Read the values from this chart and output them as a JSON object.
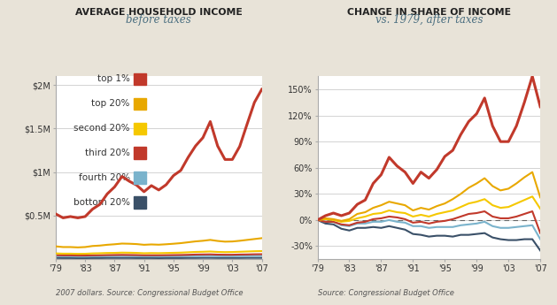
{
  "years": [
    1979,
    1980,
    1981,
    1982,
    1983,
    1984,
    1985,
    1986,
    1987,
    1988,
    1989,
    1990,
    1991,
    1992,
    1993,
    1994,
    1995,
    1996,
    1997,
    1998,
    1999,
    2000,
    2001,
    2002,
    2003,
    2004,
    2005,
    2006,
    2007
  ],
  "left_title1": "AVERAGE HOUSEHOLD INCOME",
  "left_title2": "before taxes",
  "right_title1": "CHANGE IN SHARE OF INCOME",
  "right_title2": "vs. 1979, after taxes",
  "left_source": "2007 dollars. Source: Congressional Budget Office",
  "right_source": "Source: Congressional Budget Office",
  "colors": {
    "top1": "#c1392b",
    "top20": "#e8a800",
    "second20": "#f5c800",
    "third20": "#c1392b",
    "fourth20": "#7ab3cc",
    "bottom20": "#3a5068"
  },
  "left_series": {
    "top1": [
      0.52,
      0.475,
      0.49,
      0.475,
      0.49,
      0.575,
      0.63,
      0.75,
      0.83,
      0.95,
      0.895,
      0.85,
      0.775,
      0.845,
      0.795,
      0.855,
      0.96,
      1.02,
      1.17,
      1.3,
      1.395,
      1.58,
      1.3,
      1.145,
      1.145,
      1.295,
      1.55,
      1.8,
      1.95
    ],
    "top20": [
      0.148,
      0.14,
      0.14,
      0.136,
      0.14,
      0.152,
      0.157,
      0.166,
      0.172,
      0.18,
      0.178,
      0.174,
      0.166,
      0.17,
      0.167,
      0.172,
      0.178,
      0.185,
      0.195,
      0.205,
      0.212,
      0.222,
      0.21,
      0.202,
      0.204,
      0.212,
      0.222,
      0.232,
      0.242
    ],
    "second20": [
      0.067,
      0.064,
      0.064,
      0.062,
      0.063,
      0.067,
      0.069,
      0.072,
      0.073,
      0.076,
      0.075,
      0.073,
      0.069,
      0.071,
      0.07,
      0.072,
      0.074,
      0.076,
      0.08,
      0.084,
      0.086,
      0.089,
      0.084,
      0.082,
      0.083,
      0.086,
      0.089,
      0.092,
      0.094
    ],
    "third20": [
      0.047,
      0.045,
      0.045,
      0.043,
      0.043,
      0.045,
      0.046,
      0.048,
      0.049,
      0.05,
      0.049,
      0.048,
      0.046,
      0.046,
      0.046,
      0.047,
      0.048,
      0.049,
      0.051,
      0.054,
      0.055,
      0.056,
      0.053,
      0.052,
      0.052,
      0.054,
      0.055,
      0.057,
      0.058
    ],
    "fourth20": [
      0.034,
      0.033,
      0.033,
      0.031,
      0.031,
      0.033,
      0.033,
      0.034,
      0.035,
      0.036,
      0.035,
      0.034,
      0.033,
      0.033,
      0.032,
      0.033,
      0.034,
      0.034,
      0.036,
      0.037,
      0.038,
      0.039,
      0.037,
      0.036,
      0.036,
      0.037,
      0.038,
      0.039,
      0.039
    ],
    "bottom20": [
      0.015,
      0.014,
      0.014,
      0.013,
      0.013,
      0.014,
      0.014,
      0.015,
      0.015,
      0.015,
      0.015,
      0.014,
      0.014,
      0.014,
      0.013,
      0.014,
      0.014,
      0.014,
      0.015,
      0.015,
      0.016,
      0.016,
      0.015,
      0.015,
      0.015,
      0.015,
      0.016,
      0.016,
      0.016
    ]
  },
  "right_series": {
    "top1": [
      0,
      5,
      8,
      5,
      8,
      18,
      23,
      42,
      52,
      72,
      62,
      55,
      42,
      55,
      48,
      58,
      73,
      80,
      98,
      113,
      122,
      140,
      108,
      90,
      90,
      108,
      135,
      165,
      130
    ],
    "top20": [
      0,
      2,
      1,
      -1,
      1,
      7,
      9,
      14,
      17,
      21,
      19,
      17,
      11,
      14,
      12,
      16,
      19,
      24,
      30,
      37,
      42,
      48,
      39,
      34,
      36,
      42,
      49,
      55,
      26
    ],
    "second20": [
      0,
      1,
      0,
      -2,
      -1,
      2,
      4,
      7,
      8,
      11,
      9,
      8,
      4,
      6,
      4,
      7,
      9,
      11,
      15,
      19,
      21,
      24,
      17,
      14,
      15,
      19,
      23,
      27,
      13
    ],
    "third20": [
      0,
      -2,
      -2,
      -5,
      -6,
      -3,
      -2,
      1,
      2,
      4,
      3,
      1,
      -3,
      -2,
      -4,
      -2,
      -1,
      1,
      4,
      7,
      8,
      10,
      4,
      2,
      2,
      4,
      7,
      10,
      -15
    ],
    "fourth20": [
      0,
      -2,
      -2,
      -6,
      -7,
      -4,
      -4,
      -2,
      -2,
      0,
      -2,
      -3,
      -7,
      -7,
      -9,
      -8,
      -8,
      -8,
      -6,
      -5,
      -4,
      -2,
      -7,
      -9,
      -9,
      -8,
      -7,
      -6,
      -22
    ],
    "bottom20": [
      0,
      -4,
      -5,
      -10,
      -12,
      -9,
      -9,
      -8,
      -9,
      -7,
      -9,
      -11,
      -16,
      -17,
      -19,
      -18,
      -18,
      -19,
      -17,
      -17,
      -16,
      -15,
      -20,
      -22,
      -23,
      -23,
      -22,
      -22,
      -35
    ]
  },
  "left_ylim": [
    0,
    2.1
  ],
  "left_yticks": [
    0.5,
    1.0,
    1.5,
    2.0
  ],
  "left_ytick_labels": [
    "$0.5M",
    "$1M",
    "$1.5M",
    "$2M"
  ],
  "right_ylim": [
    -45,
    165
  ],
  "right_yticks": [
    -30,
    0,
    30,
    60,
    90,
    120,
    150
  ],
  "right_ytick_labels": [
    "-30%",
    "0%",
    "30%",
    "60%",
    "90%",
    "120%",
    "150%"
  ],
  "xticks": [
    1979,
    1983,
    1987,
    1991,
    1995,
    1999,
    2003,
    2007
  ],
  "xtick_labels": [
    "'79",
    "'83",
    "'87",
    "'91",
    "'95",
    "'99",
    "'03",
    "'07"
  ],
  "bg_color": "#e8e3d8",
  "plot_bg": "#ffffff",
  "title_bold_color": "#222222",
  "title_sub_color": "#4a6e80",
  "legend_labels": [
    "top 1%",
    "top 20%",
    "second 20%",
    "third 20%",
    "fourth 20%",
    "bottom 20%"
  ],
  "legend_colors": [
    "#c1392b",
    "#e8a800",
    "#f5c800",
    "#c1392b",
    "#7ab3cc",
    "#3a5068"
  ]
}
